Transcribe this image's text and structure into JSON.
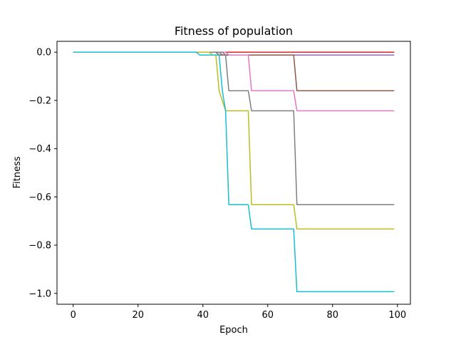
{
  "chart_data": {
    "type": "line",
    "title": "Fitness of population",
    "xlabel": "Epoch",
    "ylabel": "Fitness",
    "xlim": [
      -5,
      104
    ],
    "ylim": [
      -1.045,
      0.045
    ],
    "xticks": [
      0,
      20,
      40,
      60,
      80,
      100
    ],
    "xtick_labels": [
      "0",
      "20",
      "40",
      "60",
      "80",
      "100"
    ],
    "yticks": [
      0.0,
      -0.2,
      -0.4,
      -0.6,
      -0.8,
      -1.0
    ],
    "ytick_labels": [
      "0.0",
      "−0.2",
      "−0.4",
      "−0.6",
      "−0.8",
      "−1.0"
    ],
    "grid": false,
    "legend": false,
    "series": [
      {
        "color": "#1f77b4",
        "points": [
          [
            0,
            0.0
          ],
          [
            99,
            0.0
          ]
        ]
      },
      {
        "color": "#ff7f0e",
        "points": [
          [
            0,
            0.0
          ],
          [
            99,
            0.0
          ]
        ]
      },
      {
        "color": "#2ca02c",
        "points": [
          [
            0,
            0.0
          ],
          [
            99,
            0.0
          ]
        ]
      },
      {
        "color": "#d62728",
        "points": [
          [
            0,
            0.0
          ],
          [
            99,
            0.0
          ]
        ]
      },
      {
        "color": "#9467bd",
        "points": [
          [
            0,
            0.0
          ],
          [
            45,
            0.0
          ],
          [
            46,
            -0.012
          ],
          [
            99,
            -0.012
          ]
        ]
      },
      {
        "color": "#8c564b",
        "points": [
          [
            0,
            0.0
          ],
          [
            44,
            0.0
          ],
          [
            45,
            -0.012
          ],
          [
            68,
            -0.012
          ],
          [
            69,
            -0.16
          ],
          [
            99,
            -0.16
          ]
        ]
      },
      {
        "color": "#e377c2",
        "points": [
          [
            0,
            0.0
          ],
          [
            47,
            0.0
          ],
          [
            48,
            -0.012
          ],
          [
            54,
            -0.012
          ],
          [
            55,
            -0.16
          ],
          [
            68,
            -0.16
          ],
          [
            69,
            -0.243
          ],
          [
            99,
            -0.243
          ]
        ]
      },
      {
        "color": "#7f7f7f",
        "points": [
          [
            0,
            0.0
          ],
          [
            46,
            0.0
          ],
          [
            47,
            -0.012
          ],
          [
            48,
            -0.16
          ],
          [
            54,
            -0.16
          ],
          [
            55,
            -0.243
          ],
          [
            68,
            -0.243
          ],
          [
            69,
            -0.632
          ],
          [
            99,
            -0.632
          ]
        ]
      },
      {
        "color": "#bcbd22",
        "points": [
          [
            0,
            0.0
          ],
          [
            42,
            0.0
          ],
          [
            43,
            -0.012
          ],
          [
            44,
            -0.012
          ],
          [
            45,
            -0.16
          ],
          [
            47,
            -0.243
          ],
          [
            54,
            -0.243
          ],
          [
            55,
            -0.632
          ],
          [
            68,
            -0.632
          ],
          [
            69,
            -0.733
          ],
          [
            99,
            -0.733
          ]
        ]
      },
      {
        "color": "#17becf",
        "points": [
          [
            0,
            0.0
          ],
          [
            38,
            0.0
          ],
          [
            39,
            -0.012
          ],
          [
            45,
            -0.012
          ],
          [
            46,
            -0.16
          ],
          [
            47,
            -0.243
          ],
          [
            48,
            -0.632
          ],
          [
            54,
            -0.632
          ],
          [
            55,
            -0.733
          ],
          [
            68,
            -0.733
          ],
          [
            69,
            -0.993
          ],
          [
            99,
            -0.993
          ]
        ]
      }
    ]
  }
}
